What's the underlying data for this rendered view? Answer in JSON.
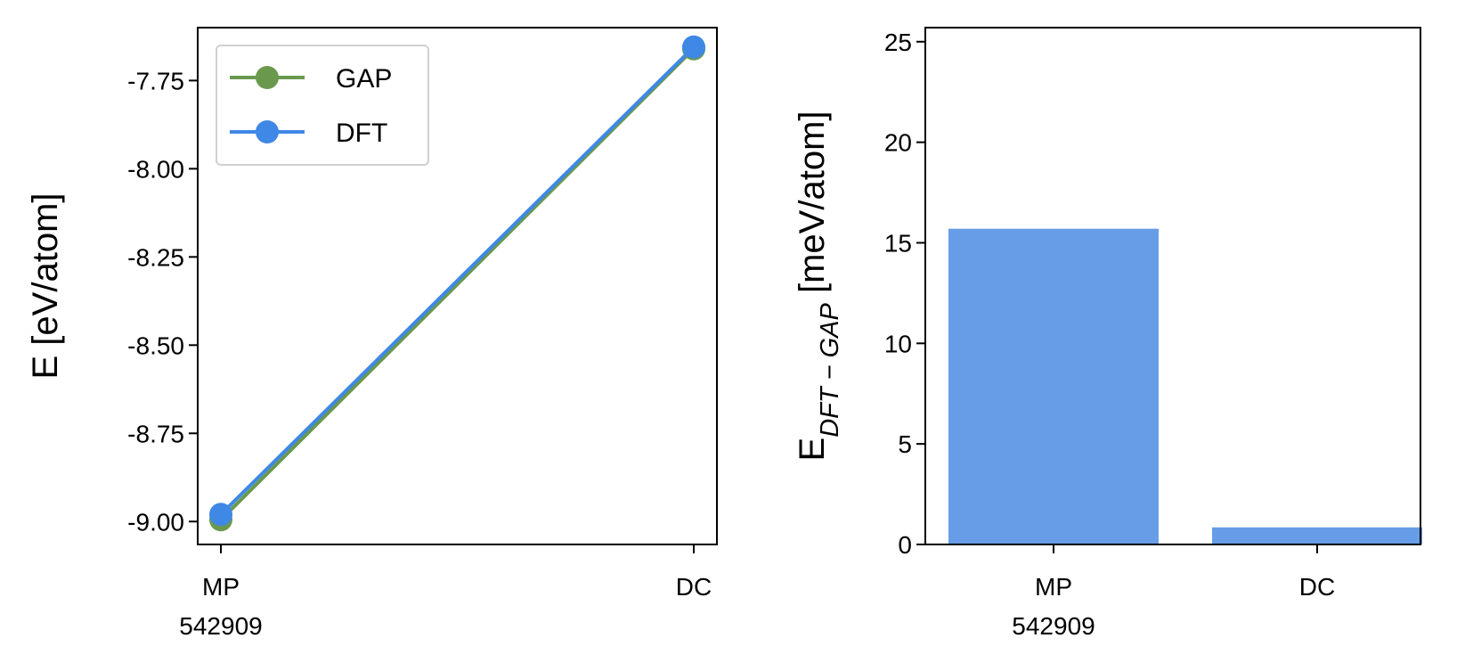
{
  "chart_data": [
    {
      "type": "line",
      "categories": [
        "MP\n542909",
        "DC"
      ],
      "series": [
        {
          "name": "GAP",
          "values": [
            -8.995,
            -7.66
          ],
          "color": "#6a994e"
        },
        {
          "name": "DFT",
          "values": [
            -8.98,
            -7.655
          ],
          "color": "#3f88e5"
        }
      ],
      "ylabel": "E [eV/atom]",
      "ylim": [
        -9.065,
        -7.6
      ],
      "yticks": [
        -9.0,
        -8.75,
        -8.5,
        -8.25,
        -8.0,
        -7.75
      ],
      "ytick_labels": [
        "-9.00",
        "-8.75",
        "-8.50",
        "-8.25",
        "-8.00",
        "-7.75"
      ],
      "legend": "top-left",
      "grid": false
    },
    {
      "type": "bar",
      "categories": [
        "MP\n542909",
        "DC"
      ],
      "values": [
        15.7,
        0.85
      ],
      "color": "#679de6",
      "ylabel_main": "E",
      "ylabel_sub": "DFT − GAP",
      "ylabel_unit": " [meV/atom]",
      "ylim": [
        0,
        25.7
      ],
      "yticks": [
        0,
        5,
        10,
        15,
        20,
        25
      ],
      "ytick_labels": [
        "0",
        "5",
        "10",
        "15",
        "20",
        "25"
      ],
      "grid": false
    }
  ]
}
